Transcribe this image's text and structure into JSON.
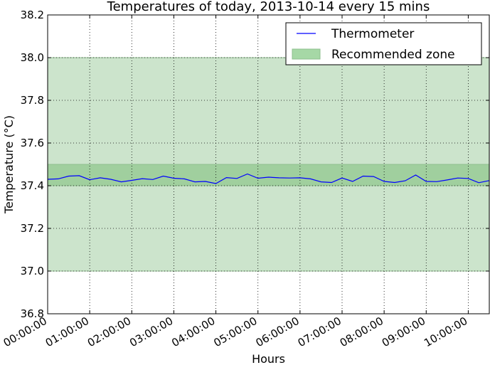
{
  "chart_data": {
    "type": "line",
    "title": "Temperatures of today, 2013-10-14 every 15 mins",
    "xlabel": "Hours",
    "ylabel": "Temperature (°C)",
    "ylim": [
      36.8,
      38.2
    ],
    "xlim": [
      "00:00:00",
      "10:30:00"
    ],
    "grid": true,
    "legend_position": "top-right",
    "y_ticks": [
      "36.8",
      "37.0",
      "37.2",
      "37.4",
      "37.6",
      "37.8",
      "38.0",
      "38.2"
    ],
    "x_ticks": [
      "00:00:00",
      "01:00:00",
      "02:00:00",
      "03:00:00",
      "04:00:00",
      "05:00:00",
      "06:00:00",
      "07:00:00",
      "08:00:00",
      "09:00:00",
      "10:00:00"
    ],
    "legend": [
      {
        "label": "Thermometer",
        "kind": "line",
        "color": "#0000ff"
      },
      {
        "label": "Recommended zone",
        "kind": "band",
        "color": "#a6d8a6"
      }
    ],
    "bands": [
      {
        "y0": 37.0,
        "y1": 38.0,
        "color": "#cce4cc"
      },
      {
        "y0": 37.4,
        "y1": 37.5,
        "color": "#a0cf9e"
      }
    ],
    "series": [
      {
        "name": "Thermometer",
        "color": "#0000ff",
        "x": [
          "00:00:00",
          "00:15:00",
          "00:30:00",
          "00:45:00",
          "01:00:00",
          "01:15:00",
          "01:30:00",
          "01:45:00",
          "02:00:00",
          "02:15:00",
          "02:30:00",
          "02:45:00",
          "03:00:00",
          "03:15:00",
          "03:30:00",
          "03:45:00",
          "04:00:00",
          "04:15:00",
          "04:30:00",
          "04:45:00",
          "05:00:00",
          "05:15:00",
          "05:30:00",
          "05:45:00",
          "06:00:00",
          "06:15:00",
          "06:30:00",
          "06:45:00",
          "07:00:00",
          "07:15:00",
          "07:30:00",
          "07:45:00",
          "08:00:00",
          "08:15:00",
          "08:30:00",
          "08:45:00",
          "09:00:00",
          "09:15:00",
          "09:30:00",
          "09:45:00",
          "10:00:00",
          "10:15:00",
          "10:30:00"
        ],
        "values": [
          37.43,
          37.432,
          37.445,
          37.447,
          37.428,
          37.437,
          37.43,
          37.418,
          37.425,
          37.433,
          37.429,
          37.445,
          37.435,
          37.432,
          37.418,
          37.42,
          37.41,
          37.438,
          37.434,
          37.455,
          37.435,
          37.44,
          37.437,
          37.436,
          37.437,
          37.432,
          37.418,
          37.415,
          37.436,
          37.42,
          37.445,
          37.443,
          37.42,
          37.415,
          37.423,
          37.45,
          37.42,
          37.419,
          37.427,
          37.436,
          37.434,
          37.414,
          37.424
        ]
      }
    ]
  }
}
